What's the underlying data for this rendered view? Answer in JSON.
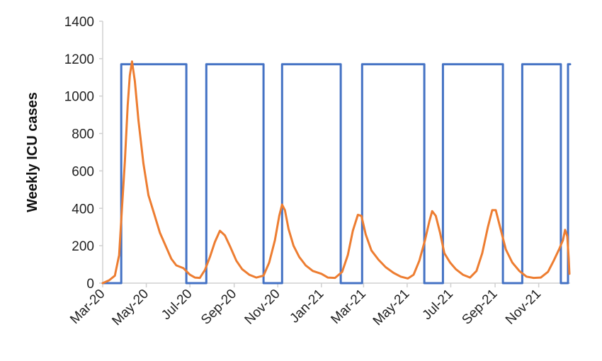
{
  "chart_data": {
    "type": "line",
    "title": "",
    "xlabel": "",
    "ylabel": "Weekly ICU cases",
    "ylim": [
      0,
      1400
    ],
    "y_ticks": [
      "0",
      "200",
      "400",
      "600",
      "800",
      "1000",
      "1200",
      "1400"
    ],
    "x_ticks": [
      "Mar-20",
      "May-20",
      "Jul-20",
      "Sep-20",
      "Nov-20",
      "Jan-21",
      "Mar-21",
      "May-21",
      "Jul-21",
      "Sep-21",
      "Nov-21"
    ],
    "x_range": [
      "2020-03-01",
      "2021-12-15"
    ],
    "grid": false,
    "legend": "none",
    "series": [
      {
        "color": "#4472C4",
        "style": "step",
        "points": [
          [
            "2020-03-01",
            0
          ],
          [
            "2020-03-27",
            0
          ],
          [
            "2020-03-27",
            1170
          ],
          [
            "2020-06-26",
            1170
          ],
          [
            "2020-06-26",
            0
          ],
          [
            "2020-07-24",
            0
          ],
          [
            "2020-07-24",
            1170
          ],
          [
            "2020-10-12",
            1170
          ],
          [
            "2020-10-12",
            0
          ],
          [
            "2020-11-07",
            0
          ],
          [
            "2020-11-07",
            1170
          ],
          [
            "2021-01-28",
            1170
          ],
          [
            "2021-01-28",
            0
          ],
          [
            "2021-02-27",
            0
          ],
          [
            "2021-02-27",
            1170
          ],
          [
            "2021-05-25",
            1170
          ],
          [
            "2021-05-25",
            0
          ],
          [
            "2021-06-20",
            0
          ],
          [
            "2021-06-20",
            1170
          ],
          [
            "2021-09-12",
            1170
          ],
          [
            "2021-09-12",
            0
          ],
          [
            "2021-10-09",
            0
          ],
          [
            "2021-10-09",
            1170
          ],
          [
            "2021-12-02",
            1170
          ],
          [
            "2021-12-02",
            0
          ],
          [
            "2021-12-12",
            0
          ],
          [
            "2021-12-12",
            1170
          ],
          [
            "2021-12-31",
            1170
          ]
        ]
      },
      {
        "color": "#ED7D31",
        "style": "line",
        "points": [
          [
            "2020-03-01",
            0
          ],
          [
            "2020-03-10",
            15
          ],
          [
            "2020-03-18",
            40
          ],
          [
            "2020-03-24",
            150
          ],
          [
            "2020-03-28",
            400
          ],
          [
            "2020-04-01",
            650
          ],
          [
            "2020-04-05",
            950
          ],
          [
            "2020-04-08",
            1110
          ],
          [
            "2020-04-11",
            1185
          ],
          [
            "2020-04-15",
            1080
          ],
          [
            "2020-04-20",
            870
          ],
          [
            "2020-04-27",
            640
          ],
          [
            "2020-05-04",
            470
          ],
          [
            "2020-05-12",
            370
          ],
          [
            "2020-05-20",
            270
          ],
          [
            "2020-05-28",
            200
          ],
          [
            "2020-06-05",
            130
          ],
          [
            "2020-06-12",
            95
          ],
          [
            "2020-06-22",
            80
          ],
          [
            "2020-07-01",
            45
          ],
          [
            "2020-07-08",
            30
          ],
          [
            "2020-07-15",
            28
          ],
          [
            "2020-07-22",
            70
          ],
          [
            "2020-07-29",
            140
          ],
          [
            "2020-08-05",
            220
          ],
          [
            "2020-08-12",
            280
          ],
          [
            "2020-08-19",
            255
          ],
          [
            "2020-08-27",
            190
          ],
          [
            "2020-09-04",
            120
          ],
          [
            "2020-09-12",
            75
          ],
          [
            "2020-09-22",
            45
          ],
          [
            "2020-10-02",
            30
          ],
          [
            "2020-10-12",
            40
          ],
          [
            "2020-10-20",
            110
          ],
          [
            "2020-10-28",
            230
          ],
          [
            "2020-11-03",
            360
          ],
          [
            "2020-11-07",
            420
          ],
          [
            "2020-11-11",
            390
          ],
          [
            "2020-11-16",
            290
          ],
          [
            "2020-11-23",
            200
          ],
          [
            "2020-12-01",
            140
          ],
          [
            "2020-12-10",
            95
          ],
          [
            "2020-12-20",
            65
          ],
          [
            "2021-01-01",
            50
          ],
          [
            "2021-01-10",
            30
          ],
          [
            "2021-01-20",
            28
          ],
          [
            "2021-01-30",
            60
          ],
          [
            "2021-02-07",
            150
          ],
          [
            "2021-02-14",
            280
          ],
          [
            "2021-02-21",
            365
          ],
          [
            "2021-02-26",
            360
          ],
          [
            "2021-03-04",
            260
          ],
          [
            "2021-03-12",
            175
          ],
          [
            "2021-03-22",
            125
          ],
          [
            "2021-04-01",
            85
          ],
          [
            "2021-04-12",
            55
          ],
          [
            "2021-04-22",
            35
          ],
          [
            "2021-05-02",
            25
          ],
          [
            "2021-05-10",
            45
          ],
          [
            "2021-05-18",
            120
          ],
          [
            "2021-05-26",
            230
          ],
          [
            "2021-06-01",
            330
          ],
          [
            "2021-06-05",
            385
          ],
          [
            "2021-06-10",
            360
          ],
          [
            "2021-06-16",
            270
          ],
          [
            "2021-06-22",
            160
          ],
          [
            "2021-06-30",
            110
          ],
          [
            "2021-07-08",
            75
          ],
          [
            "2021-07-18",
            45
          ],
          [
            "2021-07-28",
            30
          ],
          [
            "2021-08-06",
            65
          ],
          [
            "2021-08-14",
            160
          ],
          [
            "2021-08-22",
            300
          ],
          [
            "2021-08-28",
            390
          ],
          [
            "2021-09-02",
            390
          ],
          [
            "2021-09-08",
            300
          ],
          [
            "2021-09-16",
            180
          ],
          [
            "2021-09-25",
            110
          ],
          [
            "2021-10-05",
            65
          ],
          [
            "2021-10-15",
            35
          ],
          [
            "2021-10-25",
            28
          ],
          [
            "2021-11-04",
            30
          ],
          [
            "2021-11-14",
            60
          ],
          [
            "2021-11-22",
            120
          ],
          [
            "2021-11-30",
            185
          ],
          [
            "2021-12-05",
            230
          ],
          [
            "2021-12-08",
            285
          ],
          [
            "2021-12-11",
            250
          ],
          [
            "2021-12-13",
            130
          ],
          [
            "2021-12-14",
            50
          ]
        ]
      }
    ]
  }
}
